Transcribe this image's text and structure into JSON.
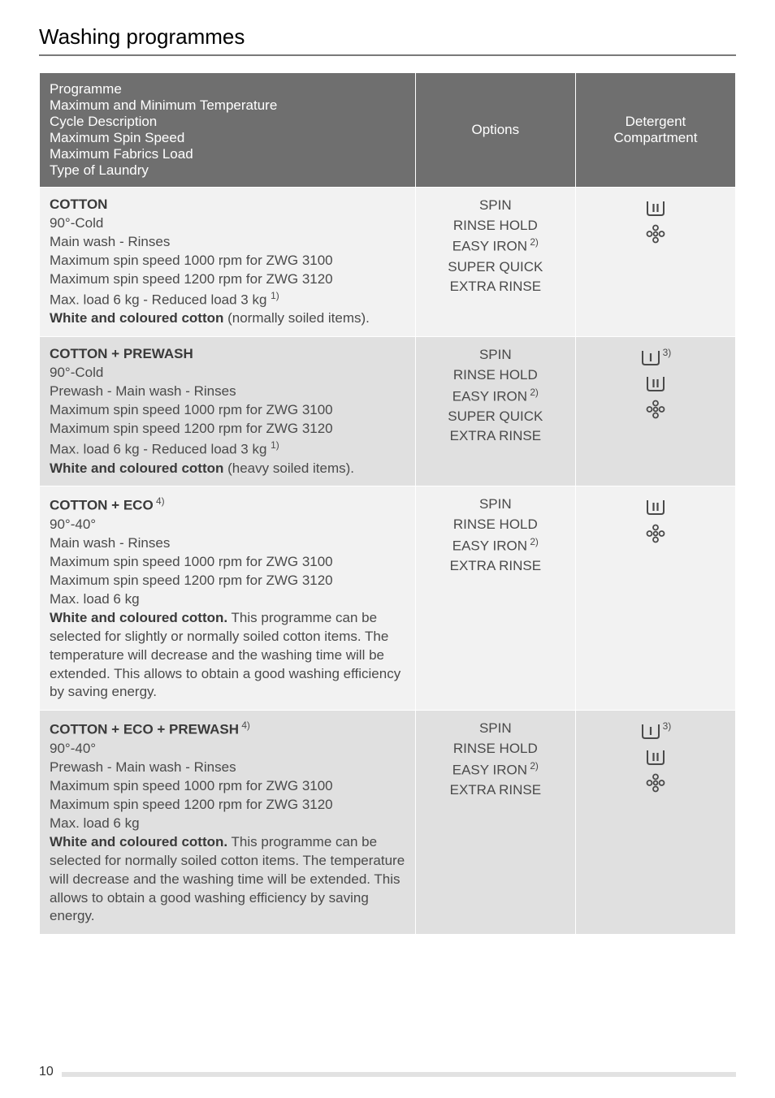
{
  "title": "Washing programmes",
  "page_number": "10",
  "header": {
    "programme_lines": [
      "Programme",
      "Maximum and Minimum Temperature",
      "Cycle Description",
      "Maximum Spin Speed",
      "Maximum Fabrics Load",
      "Type of Laundry"
    ],
    "options": "Options",
    "detergent_line1": "Detergent",
    "detergent_line2": "Compartment"
  },
  "rows": [
    {
      "name": "COTTON",
      "name_sup": "",
      "lines": [
        "90°-Cold",
        "Main wash - Rinses",
        "Maximum spin speed 1000 rpm for ZWG 3100",
        "Maximum spin speed 1200 rpm for ZWG 3120"
      ],
      "load_text": "Max. load 6 kg - Reduced load 3 kg ",
      "load_sup": "1)",
      "bold_tail": "White and coloured cotton",
      "tail_rest": " (normally soiled items).",
      "options": [
        "SPIN",
        "RINSE HOLD",
        "EASY IRON",
        "SUPER QUICK",
        "EXTRA RINSE"
      ],
      "options_sup": [
        "",
        "",
        "2)",
        "",
        ""
      ],
      "icons": [
        "wash2",
        "flower"
      ]
    },
    {
      "name": "COTTON + PREWASH",
      "name_sup": "",
      "lines": [
        "90°-Cold",
        "Prewash - Main wash - Rinses",
        "Maximum spin speed 1000 rpm for ZWG 3100",
        "Maximum spin speed 1200 rpm for ZWG 3120"
      ],
      "load_text": "Max. load 6 kg - Reduced load 3 kg ",
      "load_sup": "1)",
      "bold_tail": "White and coloured cotton",
      "tail_rest": " (heavy soiled items).",
      "options": [
        "SPIN",
        "RINSE HOLD",
        "EASY IRON",
        "SUPER QUICK",
        "EXTRA RINSE"
      ],
      "options_sup": [
        "",
        "",
        "2)",
        "",
        ""
      ],
      "icons": [
        "wash1_sup",
        "wash2",
        "flower"
      ]
    },
    {
      "name": "COTTON + ECO",
      "name_sup": " 4)",
      "lines": [
        "90°-40°",
        "Main wash - Rinses",
        "Maximum spin speed 1000 rpm for ZWG 3100",
        "Maximum spin speed 1200 rpm for ZWG 3120"
      ],
      "load_text": "Max. load 6 kg",
      "load_sup": "",
      "bold_tail": "White and coloured cotton.",
      "tail_rest": " This programme can be selected for slightly or normally soiled cotton items. The temperature will decrease and the washing time will be extended. This allows to obtain a good washing efficiency by saving energy.",
      "options": [
        "SPIN",
        "RINSE HOLD",
        "EASY IRON",
        "EXTRA RINSE"
      ],
      "options_sup": [
        "",
        "",
        "2)",
        ""
      ],
      "icons": [
        "wash2",
        "flower"
      ]
    },
    {
      "name": "COTTON + ECO + PREWASH",
      "name_sup": " 4)",
      "lines": [
        "90°-40°",
        "Prewash - Main wash - Rinses",
        "Maximum spin speed 1000 rpm for ZWG 3100",
        "Maximum spin speed 1200 rpm for ZWG 3120"
      ],
      "load_text": "Max. load 6 kg",
      "load_sup": "",
      "bold_tail": "White and coloured cotton.",
      "tail_rest": " This programme can be selected for normally soiled cotton items. The temperature will decrease and the washing time will be extended. This allows to obtain a good washing efficiency by saving energy.",
      "options": [
        "SPIN",
        "RINSE HOLD",
        "EASY IRON",
        "EXTRA RINSE"
      ],
      "options_sup": [
        "",
        "",
        "2)",
        ""
      ],
      "icons": [
        "wash1_sup",
        "wash2",
        "flower"
      ]
    }
  ],
  "icon_sup_label": "3)"
}
